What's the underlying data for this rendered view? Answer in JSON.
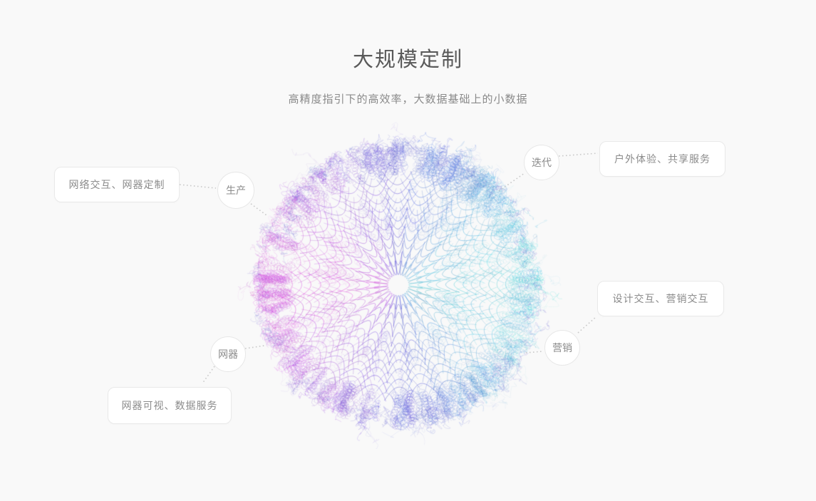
{
  "page": {
    "background_color": "#f9f9f9"
  },
  "header": {
    "title": "大规模定制",
    "subtitle": "高精度指引下的高效率，大数据基础上的小数据"
  },
  "diagram": {
    "nodes": [
      {
        "id": "production",
        "circle_label": "生产",
        "box_label": "网络交互、网器定制"
      },
      {
        "id": "iteration",
        "circle_label": "迭代",
        "box_label": "户外体验、共享服务"
      },
      {
        "id": "marketing",
        "circle_label": "营销",
        "box_label": "设计交互、营销交互"
      },
      {
        "id": "device",
        "circle_label": "网器",
        "box_label": "网器可视、数据服务"
      }
    ],
    "connector_color": "#c9c9c9",
    "sphere": {
      "left_color": "#bf55c9",
      "right_color": "#3fc9e0",
      "rim_accent_color": "#8a8ad8"
    }
  }
}
